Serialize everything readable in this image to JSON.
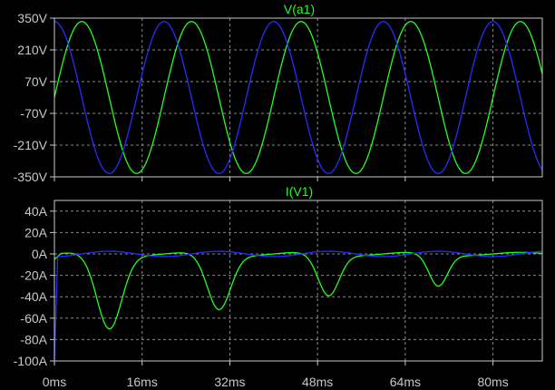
{
  "colors": {
    "background": "#000000",
    "axis": "#c8c8c8",
    "grid": "#8a8a8a",
    "green": "#22ff22",
    "blue": "#2a2aff"
  },
  "chart_data": [
    {
      "type": "line",
      "title": "V(a1)",
      "y_tick_labels": [
        "350V",
        "210V",
        "70V",
        "-70V",
        "-210V",
        "-350V"
      ],
      "ylim": [
        -350,
        350
      ],
      "xlim": [
        0,
        89
      ],
      "grid": true,
      "series": [
        {
          "color": "green",
          "kind": "sine",
          "amplitude": 335,
          "period_ms": 20,
          "phase_ms": 0
        },
        {
          "color": "blue",
          "kind": "sine",
          "amplitude": 335,
          "period_ms": 20,
          "phase_ms": -5
        }
      ]
    },
    {
      "type": "line",
      "title": "I(V1)",
      "y_tick_labels": [
        "40A",
        "20A",
        "0A",
        "-20A",
        "-40A",
        "-60A",
        "-80A",
        "-100A"
      ],
      "ylim": [
        -100,
        50
      ],
      "xlim": [
        0,
        89
      ],
      "x_tick_labels": [
        "0ms",
        "16ms",
        "32ms",
        "48ms",
        "64ms",
        "80ms"
      ],
      "grid": true,
      "series": [
        {
          "color": "green",
          "kind": "pulses",
          "pulses": [
            {
              "center_ms": 10,
              "peak": -70,
              "width_ms": 3.2
            },
            {
              "center_ms": 30,
              "peak": -52,
              "width_ms": 3.0
            },
            {
              "center_ms": 50,
              "peak": -39,
              "width_ms": 2.7
            },
            {
              "center_ms": 70,
              "peak": -30,
              "width_ms": 2.4
            }
          ],
          "start_value": -5,
          "wiggle": 1.5
        },
        {
          "color": "blue",
          "kind": "small",
          "start_value": -100,
          "amplitude": 2.5,
          "period_ms": 20
        }
      ]
    }
  ]
}
